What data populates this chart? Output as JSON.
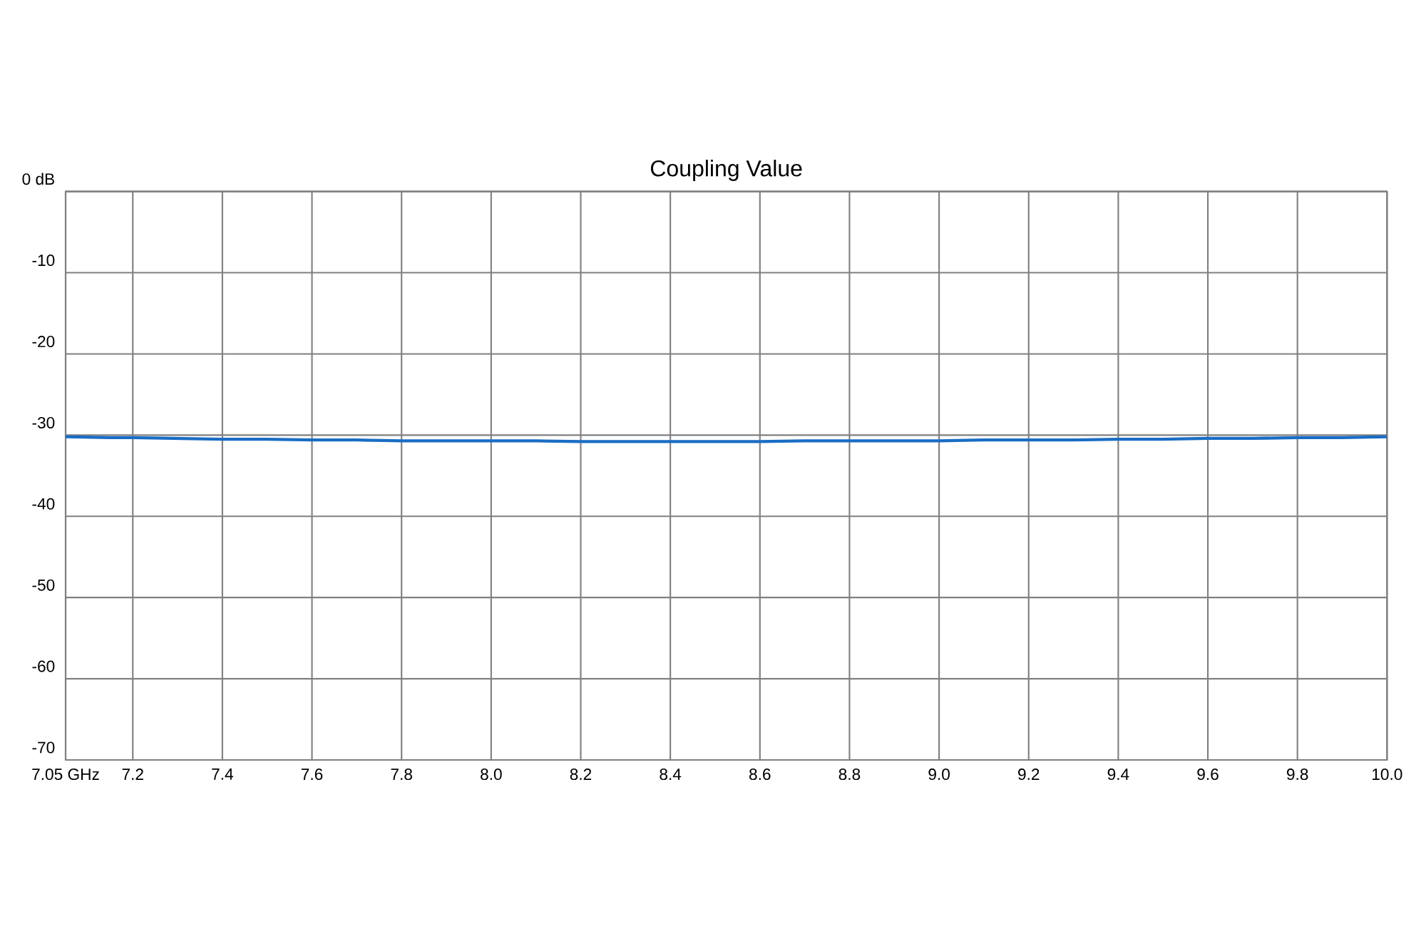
{
  "chart_data": {
    "type": "line",
    "title": "Coupling Value",
    "x": [
      7.05,
      7.15,
      7.2,
      7.3,
      7.4,
      7.5,
      7.6,
      7.7,
      7.8,
      7.9,
      8.0,
      8.1,
      8.2,
      8.3,
      8.4,
      8.5,
      8.6,
      8.7,
      8.8,
      8.9,
      9.0,
      9.1,
      9.2,
      9.3,
      9.4,
      9.5,
      9.6,
      9.7,
      9.8,
      9.9,
      10.0
    ],
    "series": [
      {
        "color": "#1a6dc4",
        "values": [
          -30.2,
          -30.3,
          -30.3,
          -30.4,
          -30.5,
          -30.5,
          -30.6,
          -30.6,
          -30.7,
          -30.7,
          -30.7,
          -30.7,
          -30.8,
          -30.8,
          -30.8,
          -30.8,
          -30.8,
          -30.7,
          -30.7,
          -30.7,
          -30.7,
          -30.6,
          -30.6,
          -30.6,
          -30.5,
          -30.5,
          -30.4,
          -30.4,
          -30.3,
          -30.3,
          -30.2
        ]
      }
    ],
    "xlim": [
      7.05,
      10.0
    ],
    "ylim": [
      -70,
      0
    ],
    "xticks": [
      {
        "value": 7.05,
        "label": "7.05 GHz"
      },
      7.2,
      7.4,
      7.6,
      7.8,
      {
        "value": 8.0,
        "label": "8.0"
      },
      8.2,
      8.4,
      8.6,
      8.8,
      {
        "value": 9.0,
        "label": "9.0"
      },
      9.2,
      9.4,
      9.6,
      9.8,
      {
        "value": 10.0,
        "label": "10.0"
      }
    ],
    "yticks": [
      -70,
      -60,
      -50,
      -40,
      -30,
      -20,
      -10,
      {
        "value": 0,
        "label": "0 dB"
      }
    ],
    "grid": true,
    "marker": "none",
    "line_style": "solid"
  }
}
